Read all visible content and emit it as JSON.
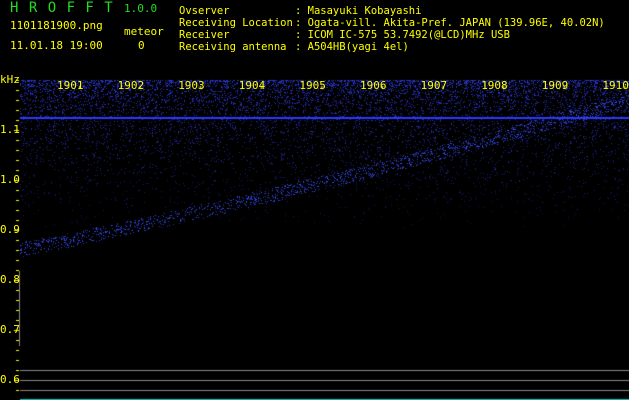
{
  "header": {
    "app_title": "H R O F F T",
    "version": "1.0.0",
    "filename": "1101181900.png",
    "datetime": "11.01.18 19:00",
    "meteor_label": "meteor",
    "meteor_count": "0"
  },
  "info": {
    "labels": [
      "Ovserver",
      "Receiving Location",
      "Receiver",
      "Receiving antenna"
    ],
    "values": [
      ": Masayuki Kobayashi",
      ": Ogata-vill. Akita-Pref. JAPAN (139.96E, 40.02N)",
      ": ICOM IC-575 53.7492(@LCD)MHz USB",
      ": A504HB(yagi 4el)"
    ]
  },
  "chart_data": {
    "type": "heatmap",
    "ylabel": "kHz",
    "x_ticks": [
      "1901",
      "1902",
      "1903",
      "1904",
      "1905",
      "1906",
      "1907",
      "1908",
      "1909",
      "1910"
    ],
    "y_ticks": [
      "1.1",
      "1.0",
      "0.9",
      "0.8",
      "0.7",
      "0.6"
    ],
    "ylim": [
      0.56,
      1.2
    ],
    "colors": {
      "signal": "#2233ff",
      "axis": "#ffff00",
      "line": "#888888",
      "baseline": "#00cccc"
    }
  }
}
